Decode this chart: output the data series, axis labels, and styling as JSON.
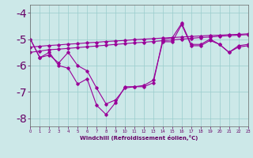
{
  "x": [
    0,
    1,
    2,
    3,
    4,
    5,
    6,
    7,
    8,
    9,
    10,
    11,
    12,
    13,
    14,
    15,
    16,
    17,
    18,
    19,
    20,
    21,
    22,
    23
  ],
  "line1": [
    -5.0,
    -5.7,
    -5.5,
    -6.0,
    -6.1,
    -6.7,
    -6.5,
    -7.5,
    -7.85,
    -7.4,
    -6.8,
    -6.8,
    -6.8,
    -6.65,
    -5.0,
    -4.95,
    -4.4,
    -5.2,
    -5.2,
    -5.0,
    -5.2,
    -5.5,
    -5.25,
    -5.2
  ],
  "line2": [
    -5.0,
    -5.7,
    -5.6,
    -5.9,
    -5.5,
    -6.0,
    -6.2,
    -6.85,
    -7.45,
    -7.3,
    -6.85,
    -6.8,
    -6.75,
    -6.55,
    -5.1,
    -5.1,
    -4.45,
    -5.25,
    -5.25,
    -5.05,
    -5.2,
    -5.5,
    -5.3,
    -5.25
  ],
  "line3": [
    -5.5,
    -5.45,
    -5.4,
    -5.38,
    -5.35,
    -5.32,
    -5.29,
    -5.26,
    -5.23,
    -5.2,
    -5.17,
    -5.14,
    -5.12,
    -5.09,
    -5.06,
    -5.03,
    -5.0,
    -4.97,
    -4.94,
    -4.92,
    -4.89,
    -4.87,
    -4.85,
    -4.83
  ],
  "line4": [
    -5.3,
    -5.27,
    -5.24,
    -5.22,
    -5.19,
    -5.17,
    -5.14,
    -5.12,
    -5.09,
    -5.07,
    -5.05,
    -5.02,
    -5.0,
    -4.98,
    -4.96,
    -4.94,
    -4.92,
    -4.9,
    -4.88,
    -4.86,
    -4.85,
    -4.83,
    -4.82,
    -4.8
  ],
  "ylim": [
    -8.3,
    -3.7
  ],
  "xlim": [
    0,
    23
  ],
  "xticks": [
    0,
    1,
    2,
    3,
    4,
    5,
    6,
    7,
    8,
    9,
    10,
    11,
    12,
    13,
    14,
    15,
    16,
    17,
    18,
    19,
    20,
    21,
    22,
    23
  ],
  "yticks": [
    -8,
    -7,
    -6,
    -5,
    -4
  ],
  "xlabel": "Windchill (Refroidissement éolien,°C)",
  "bg_color": "#cce8e8",
  "line_color": "#990099",
  "grid_color": "#99cccc",
  "tick_color": "#660066",
  "spine_color": "#666666"
}
